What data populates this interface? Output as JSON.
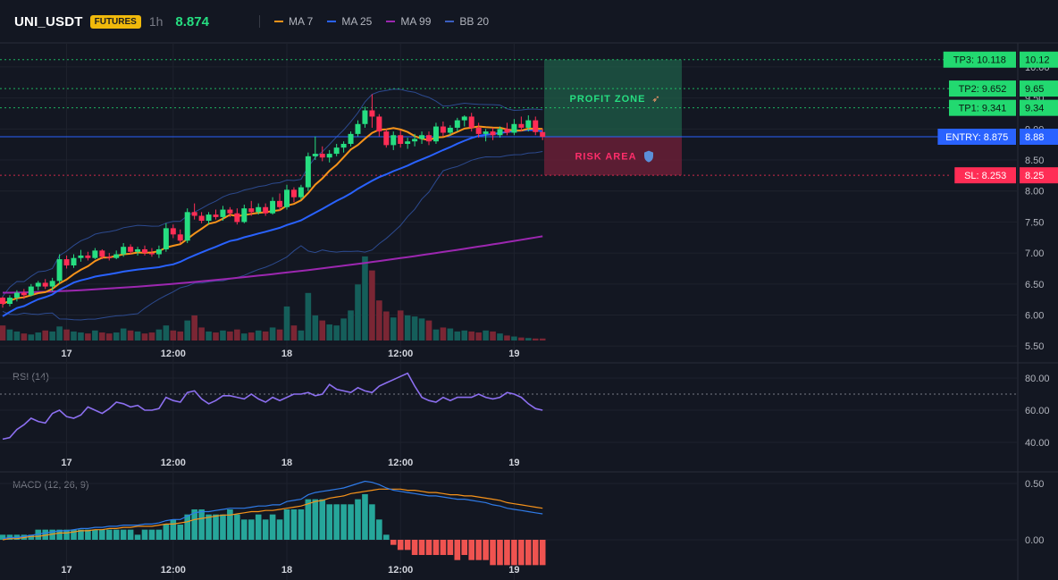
{
  "header": {
    "symbol": "UNI_USDT",
    "market": "FUTURES",
    "interval": "1h",
    "last_price": "8.874",
    "legend": [
      {
        "label": "MA 7",
        "color": "#f7931a"
      },
      {
        "label": "MA 25",
        "color": "#2962ff"
      },
      {
        "label": "MA 99",
        "color": "#9c27b0"
      },
      {
        "label": "BB 20",
        "color": "#2c4a8f"
      }
    ]
  },
  "colors": {
    "up": "#26de81",
    "down": "#ff2d55",
    "vol_up": "#155e5a",
    "vol_down": "#7a2634",
    "tp": "#22d970",
    "entry": "#2962ff",
    "sl": "#ff2d55",
    "rsi": "#8c6ff0",
    "macd": "#2f7be8",
    "signal": "#f7931a",
    "hist_pos": "#26a69a",
    "hist_neg": "#ef5350"
  },
  "chart_data": [
    {
      "type": "candlestick",
      "name": "UNI_USDT 1h",
      "x_labels": [
        "17",
        "12:00",
        "18",
        "12:00",
        "19"
      ],
      "ylim": [
        5.4,
        10.3
      ],
      "y_ticks": [
        "5.50",
        "6.00",
        "6.50",
        "7.00",
        "7.50",
        "8.00",
        "8.50",
        "9.00",
        "9.50",
        "10.00"
      ],
      "candles": [
        [
          6.28,
          6.3,
          6.12,
          6.18
        ],
        [
          6.18,
          6.32,
          6.14,
          6.28
        ],
        [
          6.28,
          6.4,
          6.22,
          6.36
        ],
        [
          6.36,
          6.42,
          6.26,
          6.32
        ],
        [
          6.32,
          6.5,
          6.3,
          6.46
        ],
        [
          6.46,
          6.55,
          6.4,
          6.52
        ],
        [
          6.52,
          6.58,
          6.42,
          6.46
        ],
        [
          6.46,
          6.6,
          6.38,
          6.55
        ],
        [
          6.55,
          6.98,
          6.5,
          6.9
        ],
        [
          6.9,
          6.96,
          6.75,
          6.8
        ],
        [
          6.8,
          6.98,
          6.76,
          6.92
        ],
        [
          6.92,
          7.05,
          6.86,
          6.96
        ],
        [
          6.96,
          7.02,
          6.88,
          6.92
        ],
        [
          6.92,
          7.08,
          6.9,
          7.04
        ],
        [
          7.04,
          7.06,
          6.9,
          6.94
        ],
        [
          6.94,
          7.0,
          6.88,
          6.92
        ],
        [
          6.92,
          7.04,
          6.9,
          6.98
        ],
        [
          6.98,
          7.16,
          6.94,
          7.1
        ],
        [
          7.1,
          7.14,
          6.98,
          7.02
        ],
        [
          7.02,
          7.1,
          6.96,
          7.06
        ],
        [
          7.06,
          7.12,
          6.96,
          7.0
        ],
        [
          7.0,
          7.08,
          6.94,
          6.98
        ],
        [
          6.98,
          7.12,
          6.92,
          7.06
        ],
        [
          7.06,
          7.48,
          7.02,
          7.4
        ],
        [
          7.4,
          7.46,
          7.24,
          7.3
        ],
        [
          7.3,
          7.38,
          7.16,
          7.2
        ],
        [
          7.2,
          7.72,
          7.16,
          7.66
        ],
        [
          7.66,
          7.8,
          7.54,
          7.6
        ],
        [
          7.6,
          7.66,
          7.48,
          7.52
        ],
        [
          7.52,
          7.66,
          7.46,
          7.62
        ],
        [
          7.62,
          7.7,
          7.54,
          7.58
        ],
        [
          7.58,
          7.76,
          7.52,
          7.7
        ],
        [
          7.7,
          7.74,
          7.58,
          7.64
        ],
        [
          7.64,
          7.72,
          7.46,
          7.5
        ],
        [
          7.5,
          7.78,
          7.48,
          7.72
        ],
        [
          7.72,
          7.84,
          7.6,
          7.66
        ],
        [
          7.66,
          7.8,
          7.62,
          7.74
        ],
        [
          7.74,
          7.8,
          7.6,
          7.64
        ],
        [
          7.64,
          7.9,
          7.62,
          7.84
        ],
        [
          7.84,
          7.96,
          7.68,
          7.74
        ],
        [
          7.74,
          8.1,
          7.7,
          8.02
        ],
        [
          8.02,
          8.06,
          7.82,
          7.9
        ],
        [
          7.9,
          8.1,
          7.86,
          8.06
        ],
        [
          8.06,
          8.62,
          8.0,
          8.56
        ],
        [
          8.56,
          8.88,
          8.5,
          8.6
        ],
        [
          8.6,
          8.72,
          8.48,
          8.54
        ],
        [
          8.54,
          8.66,
          8.46,
          8.6
        ],
        [
          8.6,
          8.76,
          8.56,
          8.7
        ],
        [
          8.7,
          8.8,
          8.62,
          8.76
        ],
        [
          8.76,
          8.96,
          8.72,
          8.92
        ],
        [
          8.92,
          9.14,
          8.88,
          9.08
        ],
        [
          9.08,
          9.36,
          9.02,
          9.3
        ],
        [
          9.3,
          9.56,
          9.02,
          9.2
        ],
        [
          9.2,
          9.24,
          8.88,
          8.96
        ],
        [
          8.96,
          9.0,
          8.7,
          8.74
        ],
        [
          8.74,
          8.96,
          8.66,
          8.9
        ],
        [
          8.9,
          8.98,
          8.7,
          8.76
        ],
        [
          8.76,
          8.86,
          8.68,
          8.8
        ],
        [
          8.8,
          8.92,
          8.72,
          8.84
        ],
        [
          8.84,
          8.96,
          8.76,
          8.9
        ],
        [
          8.9,
          8.96,
          8.74,
          8.8
        ],
        [
          8.8,
          9.1,
          8.76,
          9.04
        ],
        [
          9.04,
          9.12,
          8.88,
          8.94
        ],
        [
          8.94,
          9.06,
          8.9,
          9.02
        ],
        [
          9.02,
          9.18,
          8.96,
          9.14
        ],
        [
          9.14,
          9.22,
          9.04,
          9.2
        ],
        [
          9.2,
          9.26,
          8.96,
          9.02
        ],
        [
          9.02,
          9.1,
          8.86,
          8.92
        ],
        [
          8.92,
          9.0,
          8.8,
          8.96
        ],
        [
          8.96,
          9.02,
          8.82,
          8.9
        ],
        [
          8.9,
          9.04,
          8.86,
          9.0
        ],
        [
          9.0,
          9.1,
          8.9,
          8.94
        ],
        [
          8.94,
          9.16,
          8.9,
          9.08
        ],
        [
          9.08,
          9.2,
          8.96,
          9.02
        ],
        [
          9.02,
          9.22,
          8.96,
          9.14
        ],
        [
          9.14,
          9.2,
          8.9,
          8.95
        ],
        [
          8.95,
          9.0,
          8.82,
          8.874
        ]
      ],
      "volume": [
        30,
        22,
        18,
        14,
        12,
        16,
        20,
        18,
        28,
        22,
        18,
        16,
        14,
        20,
        16,
        14,
        16,
        24,
        20,
        18,
        14,
        16,
        22,
        30,
        20,
        18,
        40,
        50,
        26,
        18,
        16,
        20,
        18,
        22,
        14,
        16,
        20,
        18,
        26,
        22,
        68,
        30,
        20,
        95,
        50,
        40,
        32,
        30,
        44,
        60,
        112,
        168,
        140,
        80,
        58,
        46,
        60,
        50,
        48,
        44,
        40,
        22,
        26,
        24,
        18,
        20,
        18,
        16,
        20,
        18,
        14,
        10,
        8,
        6,
        5,
        4,
        4
      ],
      "ma7_last": 8.9,
      "ma25_last": 8.86,
      "ma99_last": 7.27
    },
    {
      "type": "line",
      "name": "RSI (14)",
      "ylim": [
        35,
        88
      ],
      "y_ticks": [
        "40.00",
        "60.00",
        "80.00"
      ],
      "reference_line": 70,
      "values": [
        42,
        43,
        48,
        51,
        55,
        53,
        52,
        58,
        60,
        56,
        55,
        57,
        62,
        60,
        58,
        61,
        65,
        64,
        62,
        63,
        60,
        60,
        61,
        68,
        66,
        65,
        71,
        72,
        67,
        64,
        66,
        69,
        69,
        68,
        67,
        70,
        67,
        65,
        68,
        66,
        68,
        70,
        70,
        71,
        69,
        70,
        76,
        73,
        72,
        71,
        74,
        72,
        71,
        75,
        77,
        79,
        81,
        83,
        75,
        68,
        66,
        65,
        68,
        66,
        68,
        68,
        68,
        70,
        68,
        67,
        68,
        71,
        70,
        68,
        64,
        61,
        60
      ]
    },
    {
      "type": "bar+line",
      "name": "MACD (12, 26, 9)",
      "ylim": [
        -0.08,
        0.56
      ],
      "y_ticks": [
        "0.00",
        "0.50"
      ],
      "macd": [
        0.01,
        0.02,
        0.02,
        0.03,
        0.04,
        0.05,
        0.06,
        0.07,
        0.08,
        0.08,
        0.09,
        0.1,
        0.1,
        0.11,
        0.11,
        0.12,
        0.12,
        0.13,
        0.13,
        0.13,
        0.14,
        0.14,
        0.15,
        0.17,
        0.18,
        0.18,
        0.21,
        0.24,
        0.25,
        0.25,
        0.26,
        0.27,
        0.28,
        0.28,
        0.28,
        0.29,
        0.3,
        0.3,
        0.31,
        0.31,
        0.34,
        0.35,
        0.36,
        0.4,
        0.42,
        0.43,
        0.44,
        0.45,
        0.46,
        0.48,
        0.5,
        0.52,
        0.51,
        0.49,
        0.46,
        0.44,
        0.43,
        0.42,
        0.41,
        0.4,
        0.39,
        0.39,
        0.38,
        0.37,
        0.36,
        0.36,
        0.35,
        0.34,
        0.33,
        0.31,
        0.3,
        0.28,
        0.27,
        0.26,
        0.25,
        0.24,
        0.23
      ],
      "signal": [
        0.0,
        0.01,
        0.01,
        0.02,
        0.03,
        0.03,
        0.04,
        0.05,
        0.06,
        0.06,
        0.07,
        0.08,
        0.08,
        0.09,
        0.09,
        0.1,
        0.1,
        0.11,
        0.11,
        0.12,
        0.12,
        0.12,
        0.13,
        0.14,
        0.14,
        0.15,
        0.16,
        0.18,
        0.19,
        0.2,
        0.21,
        0.22,
        0.22,
        0.23,
        0.24,
        0.25,
        0.25,
        0.26,
        0.26,
        0.27,
        0.28,
        0.29,
        0.3,
        0.32,
        0.34,
        0.35,
        0.37,
        0.38,
        0.39,
        0.41,
        0.42,
        0.43,
        0.44,
        0.45,
        0.45,
        0.45,
        0.45,
        0.44,
        0.44,
        0.43,
        0.42,
        0.42,
        0.41,
        0.4,
        0.4,
        0.39,
        0.39,
        0.38,
        0.37,
        0.36,
        0.35,
        0.33,
        0.32,
        0.31,
        0.3,
        0.29,
        0.28
      ]
    }
  ],
  "annotations": {
    "zones": [
      {
        "label": "PROFIT ZONE",
        "icon": "rocket-icon"
      },
      {
        "label": "RISK AREA",
        "icon": "shield-icon"
      }
    ],
    "levels": [
      {
        "tag": "TP3: 10.118",
        "axis": "10.12",
        "value": 10.118,
        "kind": "tp"
      },
      {
        "tag": "TP2: 9.652",
        "axis": "9.65",
        "value": 9.652,
        "kind": "tp"
      },
      {
        "tag": "TP1: 9.341",
        "axis": "9.34",
        "value": 9.341,
        "kind": "tp"
      },
      {
        "tag": "ENTRY: 8.875",
        "axis": "8.88",
        "value": 8.875,
        "kind": "entry"
      },
      {
        "tag": "SL: 8.253",
        "axis": "8.25",
        "value": 8.253,
        "kind": "sl"
      }
    ]
  }
}
